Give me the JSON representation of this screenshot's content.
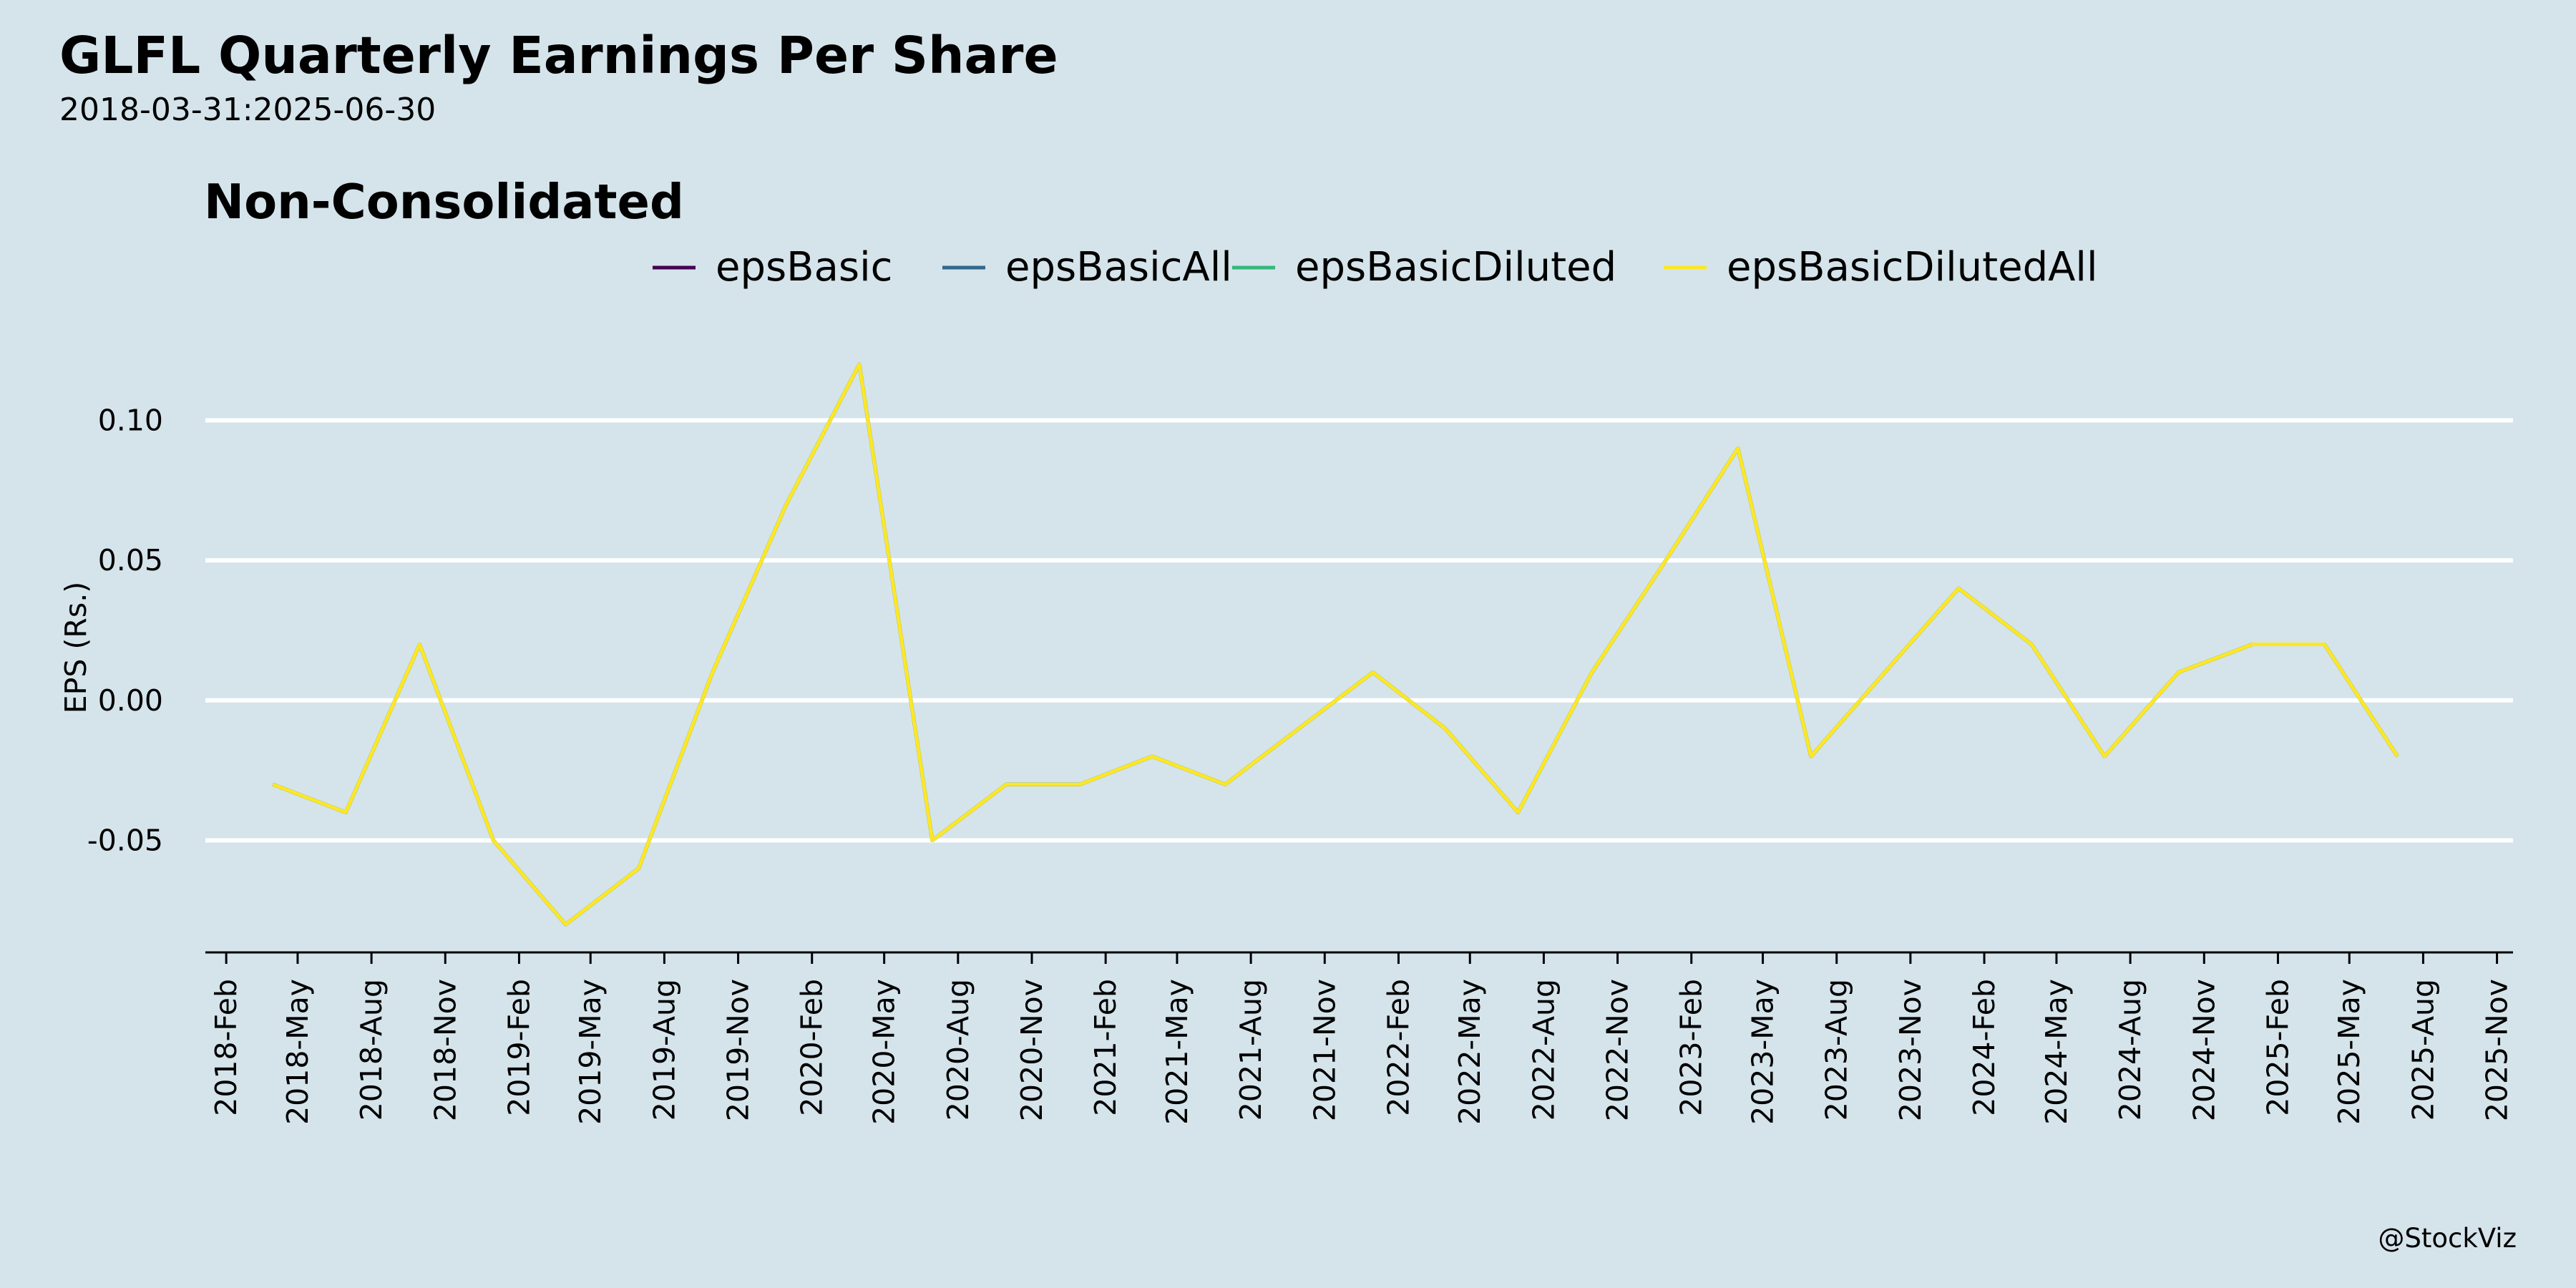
{
  "header": {
    "title": "GLFL Quarterly Earnings Per Share",
    "subtitle": "2018-03-31:2025-06-30"
  },
  "credit": "@StockViz",
  "colors": {
    "background": "#d5e4eb",
    "grid": "#ffffff",
    "axis": "#000000"
  },
  "chart_data": {
    "type": "line",
    "title": "Non-Consolidated",
    "xlabel": "",
    "ylabel": "EPS (Rs.)",
    "ylim": [
      -0.09,
      0.13
    ],
    "yticks": [
      -0.05,
      0.0,
      0.05,
      0.1
    ],
    "ytick_labels": [
      "-0.05",
      "0.00",
      "0.05",
      "0.10"
    ],
    "xlim": [
      "2018-01-06",
      "2025-11-21"
    ],
    "xticks": [
      "2018-02-01",
      "2018-05-01",
      "2018-08-01",
      "2018-11-01",
      "2019-02-01",
      "2019-05-01",
      "2019-08-01",
      "2019-11-01",
      "2020-02-01",
      "2020-05-01",
      "2020-08-01",
      "2020-11-01",
      "2021-02-01",
      "2021-05-01",
      "2021-08-01",
      "2021-11-01",
      "2022-02-01",
      "2022-05-01",
      "2022-08-01",
      "2022-11-01",
      "2023-02-01",
      "2023-05-01",
      "2023-08-01",
      "2023-11-01",
      "2024-02-01",
      "2024-05-01",
      "2024-08-01",
      "2024-11-01",
      "2025-02-01",
      "2025-05-01",
      "2025-08-01",
      "2025-11-01"
    ],
    "xtick_labels": [
      "2018-Feb",
      "2018-May",
      "2018-Aug",
      "2018-Nov",
      "2019-Feb",
      "2019-May",
      "2019-Aug",
      "2019-Nov",
      "2020-Feb",
      "2020-May",
      "2020-Aug",
      "2020-Nov",
      "2021-Feb",
      "2021-May",
      "2021-Aug",
      "2021-Nov",
      "2022-Feb",
      "2022-May",
      "2022-Aug",
      "2022-Nov",
      "2023-Feb",
      "2023-May",
      "2023-Aug",
      "2023-Nov",
      "2024-Feb",
      "2024-May",
      "2024-Aug",
      "2024-Nov",
      "2025-Feb",
      "2025-May",
      "2025-Aug",
      "2025-Nov"
    ],
    "grid": "horizontal",
    "legend_position": "top-center",
    "x": [
      "2018-03-31",
      "2018-06-30",
      "2018-09-30",
      "2018-12-31",
      "2019-03-31",
      "2019-06-30",
      "2019-09-30",
      "2019-12-31",
      "2020-03-31",
      "2020-06-30",
      "2020-09-30",
      "2020-12-31",
      "2021-03-31",
      "2021-06-30",
      "2021-09-30",
      "2021-12-31",
      "2022-03-31",
      "2022-06-30",
      "2022-09-30",
      "2022-12-31",
      "2023-03-31",
      "2023-06-30",
      "2023-09-30",
      "2023-12-31",
      "2024-03-31",
      "2024-06-30",
      "2024-09-30",
      "2024-12-31",
      "2025-03-31",
      "2025-06-30"
    ],
    "series": [
      {
        "name": "epsBasic",
        "color": "#440154",
        "values": [
          -0.03,
          -0.04,
          0.02,
          -0.05,
          -0.08,
          -0.06,
          0.01,
          0.07,
          0.12,
          -0.05,
          -0.03,
          -0.03,
          -0.02,
          -0.03,
          -0.01,
          0.01,
          -0.01,
          -0.04,
          0.01,
          0.05,
          0.09,
          -0.02,
          0.01,
          0.04,
          0.02,
          -0.02,
          0.01,
          0.02,
          0.02,
          -0.02
        ]
      },
      {
        "name": "epsBasicAll",
        "color": "#31688e",
        "values": [
          -0.03,
          -0.04,
          0.02,
          -0.05,
          -0.08,
          -0.06,
          0.01,
          0.07,
          0.12,
          -0.05,
          -0.03,
          -0.03,
          -0.02,
          -0.03,
          -0.01,
          0.01,
          -0.01,
          -0.04,
          0.01,
          0.05,
          0.09,
          -0.02,
          0.01,
          0.04,
          0.02,
          -0.02,
          0.01,
          0.02,
          0.02,
          -0.02
        ]
      },
      {
        "name": "epsBasicDiluted",
        "color": "#35b779",
        "values": [
          -0.03,
          -0.04,
          0.02,
          -0.05,
          -0.08,
          -0.06,
          0.01,
          0.07,
          0.12,
          -0.05,
          -0.03,
          -0.03,
          -0.02,
          -0.03,
          -0.01,
          0.01,
          -0.01,
          -0.04,
          0.01,
          0.05,
          0.09,
          -0.02,
          0.01,
          0.04,
          0.02,
          -0.02,
          0.01,
          0.02,
          0.02,
          -0.02
        ]
      },
      {
        "name": "epsBasicDilutedAll",
        "color": "#fde725",
        "values": [
          -0.03,
          -0.04,
          0.02,
          -0.05,
          -0.08,
          -0.06,
          0.01,
          0.07,
          0.12,
          -0.05,
          -0.03,
          -0.03,
          -0.02,
          -0.03,
          -0.01,
          0.01,
          -0.01,
          -0.04,
          0.01,
          0.05,
          0.09,
          -0.02,
          0.01,
          0.04,
          0.02,
          -0.02,
          0.01,
          0.02,
          0.02,
          -0.02
        ]
      }
    ]
  }
}
